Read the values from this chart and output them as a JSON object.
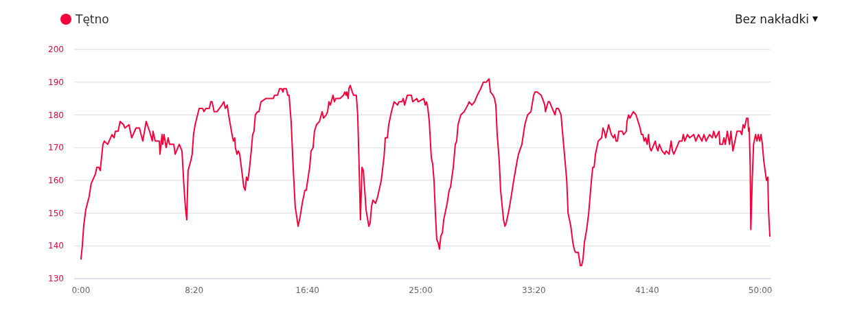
{
  "chart_data": {
    "type": "line",
    "x": [
      0,
      6,
      12,
      21,
      36,
      45,
      64,
      70,
      79,
      85,
      97,
      103,
      118,
      137,
      146,
      152,
      164,
      173,
      188,
      194,
      212,
      224,
      243,
      258,
      273,
      288,
      303,
      315,
      318,
      328,
      346,
      349,
      358,
      361,
      367,
      376,
      385,
      391,
      410,
      416,
      434,
      446,
      455,
      461,
      467,
      473,
      485,
      491,
      497,
      504,
      522,
      537,
      543,
      552,
      567,
      573,
      579,
      588,
      601,
      622,
      631,
      637,
      646,
      652,
      667,
      673,
      679,
      682,
      689,
      695,
      701,
      710,
      719,
      725,
      731,
      737,
      743,
      752,
      758,
      764,
      770,
      780,
      786,
      795,
      816,
      849,
      855,
      868,
      877,
      886,
      892,
      895,
      907,
      913,
      919,
      928,
      937,
      946,
      959,
      968,
      977,
      989,
      995,
      1001,
      1010,
      1016,
      1025,
      1031,
      1040,
      1053,
      1065,
      1071,
      1083,
      1089,
      1095,
      1101,
      1113,
      1119,
      1125,
      1144,
      1159,
      1165,
      1171,
      1174,
      1180,
      1183,
      1189,
      1198,
      1204,
      1216,
      1222,
      1228,
      1234,
      1241,
      1247,
      1253,
      1259,
      1271,
      1277,
      1283,
      1289,
      1301,
      1310,
      1326,
      1338,
      1344,
      1353,
      1359,
      1371,
      1383,
      1398,
      1404,
      1417,
      1423,
      1429,
      1441,
      1459,
      1465,
      1483,
      1489,
      1514,
      1520,
      1526,
      1532,
      1538,
      1547,
      1553,
      1559,
      1565,
      1571,
      1577,
      1583,
      1589,
      1596,
      1602,
      1617,
      1626,
      1632,
      1644,
      1653,
      1659,
      1665,
      1677,
      1692,
      1708,
      1714,
      1726,
      1738,
      1750,
      1765,
      1777,
      1790,
      1802,
      1808,
      1820,
      1826,
      1832,
      1838,
      1847,
      1853,
      1866,
      1872,
      1878,
      1890,
      1902,
      1911,
      1926,
      1932,
      1947,
      1960,
      1972,
      1987,
      1999,
      2005,
      2014,
      2032,
      2038,
      2048,
      2051,
      2063,
      2069,
      2081,
      2093,
      2099,
      2108,
      2120,
      2126,
      2135,
      2145,
      2151,
      2163,
      2172,
      2178,
      2184,
      2196,
      2205,
      2211,
      2217,
      2223,
      2233,
      2242,
      2254,
      2260,
      2266,
      2272,
      2284,
      2299,
      2305,
      2311,
      2317,
      2330,
      2342,
      2351,
      2357,
      2363,
      2369,
      2375,
      2390,
      2396,
      2408,
      2411,
      2418,
      2424,
      2439,
      2451,
      2460,
      2469,
      2475,
      2481,
      2487,
      2493,
      2500,
      2506,
      2512,
      2518,
      2530,
      2536,
      2542,
      2548,
      2554,
      2560,
      2566,
      2578,
      2584,
      2597,
      2606,
      2612,
      2618,
      2630,
      2642,
      2654,
      2660,
      2666,
      2678,
      2688,
      2706,
      2715,
      2727,
      2742,
      2751,
      2760,
      2776,
      2788,
      2794,
      2803,
      2818,
      2821,
      2833,
      2839,
      2845,
      2854,
      2864,
      2870,
      2879,
      2888,
      2897,
      2912,
      2918,
      2924,
      2930,
      2939,
      2945,
      2948,
      2951,
      2955,
      2958,
      2964,
      2970,
      2979,
      2985,
      2991,
      2997,
      3003,
      3009,
      3015,
      3021,
      3027,
      3033,
      3036,
      3042
    ],
    "series": [
      {
        "name": "Tętno",
        "color": "#f4003a",
        "values": [
          136,
          140,
          146,
          151,
          155,
          159,
          162,
          164,
          164,
          163,
          171,
          172,
          171,
          174,
          173,
          175,
          175,
          178,
          177,
          176,
          177,
          173,
          176,
          176,
          172,
          178,
          175,
          172,
          175,
          172,
          172,
          168,
          174,
          171,
          174,
          170,
          173,
          171,
          171,
          168,
          171,
          169,
          158,
          152,
          148,
          163,
          166,
          168,
          174,
          177,
          182,
          182,
          181,
          182,
          182,
          184,
          184,
          181,
          181,
          183,
          184,
          182,
          183,
          180,
          174,
          172,
          173,
          170,
          168,
          169,
          168,
          163,
          158,
          157,
          161,
          160,
          163,
          169,
          174,
          175,
          180,
          181,
          181,
          184,
          185,
          185,
          186,
          186,
          188,
          188,
          187,
          188,
          188,
          186,
          186,
          178,
          164,
          152,
          146,
          149,
          153,
          157,
          157,
          160,
          164,
          169,
          170,
          175,
          177,
          178,
          181,
          179,
          180,
          181,
          184,
          183,
          186,
          184,
          185,
          185,
          186,
          187,
          186,
          187,
          185,
          188,
          189,
          187,
          186,
          186,
          180,
          165,
          148,
          164,
          163,
          157,
          151,
          146,
          147,
          152,
          154,
          153,
          155,
          160,
          167,
          173,
          173,
          177,
          181,
          184,
          183,
          184,
          184,
          185,
          183,
          186,
          186,
          184,
          185,
          184,
          185,
          183,
          184,
          182,
          178,
          167,
          165,
          160,
          150,
          142,
          141,
          139,
          143,
          144,
          148,
          153,
          157,
          158,
          164,
          171,
          172,
          177,
          180,
          181,
          183,
          184,
          183,
          184,
          186,
          188,
          190,
          190,
          191,
          187,
          186,
          185,
          183,
          174,
          166,
          157,
          148,
          146,
          147,
          151,
          156,
          160,
          166,
          168,
          171,
          177,
          180,
          181,
          186,
          187,
          187,
          186,
          185,
          183,
          181,
          184,
          184,
          182,
          180,
          182,
          182,
          180,
          175,
          168,
          160,
          150,
          146,
          141,
          139,
          138,
          138,
          134,
          134,
          136,
          141,
          145,
          150,
          160,
          164,
          164,
          168,
          172,
          173,
          176,
          175,
          173,
          177,
          174,
          173,
          174,
          172,
          172,
          175,
          175,
          174,
          175,
          178,
          180,
          179,
          181,
          180,
          178,
          176,
          174,
          174,
          172,
          173,
          171,
          174,
          170,
          169,
          171,
          172,
          170,
          169,
          171,
          170,
          169,
          168,
          169,
          168,
          172,
          169,
          168,
          170,
          172,
          172,
          174,
          172,
          174,
          173,
          174,
          172,
          174,
          172,
          174,
          172,
          174,
          173,
          175,
          173,
          175,
          171,
          171,
          173,
          171,
          175,
          171,
          175,
          169,
          172,
          175,
          175,
          174,
          177,
          176,
          179,
          179,
          175,
          176,
          165,
          145,
          160,
          171,
          174,
          172,
          174,
          172,
          174,
          171,
          166,
          163,
          160,
          161,
          151,
          143
        ]
      }
    ],
    "xlim": [
      -30,
      3045
    ],
    "xticks": [
      {
        "value": 0,
        "label": "0:00"
      },
      {
        "value": 500,
        "label": "8:20"
      },
      {
        "value": 1000,
        "label": "16:40"
      },
      {
        "value": 1500,
        "label": "25:00"
      },
      {
        "value": 2000,
        "label": "33:20"
      },
      {
        "value": 2500,
        "label": "41:40"
      },
      {
        "value": 3000,
        "label": "50:00"
      }
    ],
    "ylim": [
      130,
      200
    ],
    "yticks": [
      130,
      140,
      150,
      160,
      170,
      180,
      190,
      200
    ],
    "grid": "y",
    "legend": "top left",
    "marker": "none",
    "line_style": "solid",
    "annotations": [
      "Bez nakładki"
    ]
  }
}
